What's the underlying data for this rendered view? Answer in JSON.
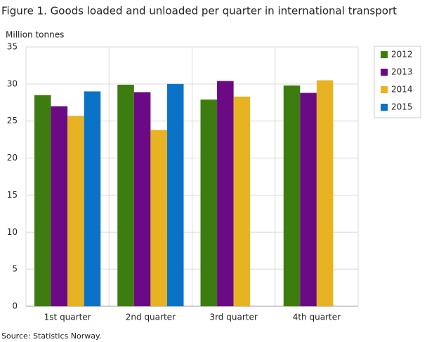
{
  "chart_data": {
    "type": "bar",
    "title": "Figure 1. Goods loaded and unloaded per quarter in international transport",
    "y_label": "Million tonnes",
    "source": "Source: Statistics Norway.",
    "categories": [
      "1st quarter",
      "2nd quarter",
      "3rd quarter",
      "4th quarter"
    ],
    "series": [
      {
        "name": "2012",
        "color": "#3d7c0f",
        "values": [
          28.5,
          29.9,
          27.9,
          29.8
        ]
      },
      {
        "name": "2013",
        "color": "#6b0a84",
        "values": [
          27.0,
          28.9,
          30.4,
          28.8
        ]
      },
      {
        "name": "2014",
        "color": "#e8b323",
        "values": [
          25.7,
          23.8,
          28.3,
          30.5
        ]
      },
      {
        "name": "2015",
        "color": "#0a73c8",
        "values": [
          29.0,
          30.0,
          null,
          null
        ]
      }
    ],
    "ylim": [
      0,
      35
    ],
    "yticks": [
      0,
      5,
      10,
      15,
      20,
      25,
      30,
      35
    ],
    "grid": true,
    "legend": "right"
  }
}
